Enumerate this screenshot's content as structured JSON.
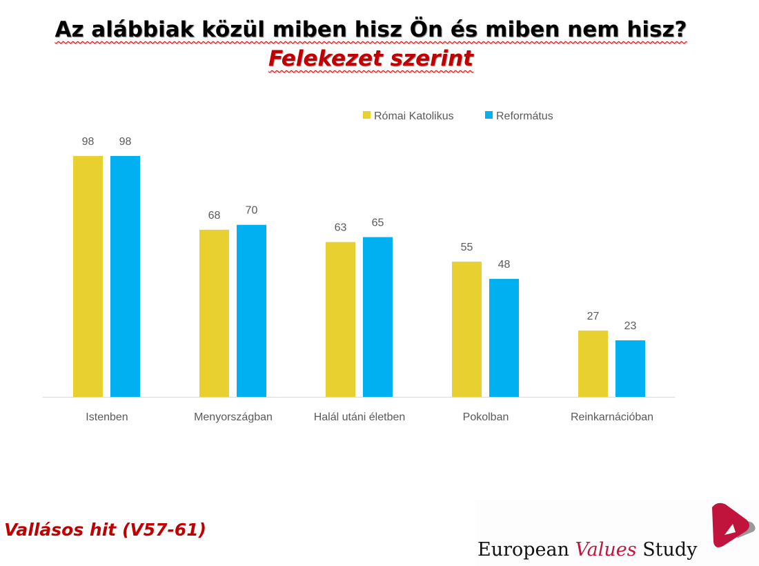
{
  "title": {
    "main": "Az alábbiak közül miben hisz Ön és miben nem hisz?",
    "accent": "Felekezet szerint"
  },
  "footer": "Vallásos hit (V57-61)",
  "logo": {
    "word1": "European",
    "word2": "Values",
    "word3": "Study"
  },
  "colors": {
    "Római Katolikus": "#E8D030",
    "Református": "#00B0F0"
  },
  "chart_data": {
    "type": "bar",
    "title": "",
    "xlabel": "",
    "ylabel": "",
    "categories": [
      "Istenben",
      "Menyországban",
      "Halál utáni életben",
      "Pokolban",
      "Reinkarnációban"
    ],
    "series": [
      {
        "name": "Római Katolikus",
        "values": [
          98,
          68,
          63,
          55,
          27
        ]
      },
      {
        "name": "Református",
        "values": [
          98,
          70,
          65,
          48,
          23
        ]
      }
    ],
    "ylim": [
      0,
      100
    ],
    "legend": "top-right",
    "grid": false
  }
}
